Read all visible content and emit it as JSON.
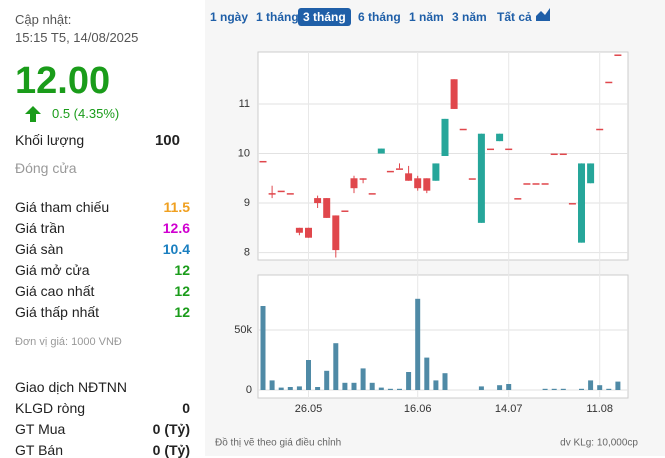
{
  "header": {
    "updated_label": "Cập nhật:",
    "updated_time": "15:15 T5, 14/08/2025",
    "price": "12.00",
    "change": "0.5 (4.35%)"
  },
  "volume_row": {
    "label": "Khối lượng",
    "value": "100"
  },
  "close_row": {
    "label": "Đóng cửa"
  },
  "price_rows": [
    {
      "label": "Giá tham chiếu",
      "value": "11.5"
    },
    {
      "label": "Giá trần",
      "value": "12.6"
    },
    {
      "label": "Giá sàn",
      "value": "10.4"
    },
    {
      "label": "Giá mở cửa",
      "value": "12"
    },
    {
      "label": "Giá cao nhất",
      "value": "12"
    },
    {
      "label": "Giá thấp nhất",
      "value": "12"
    }
  ],
  "unit_note": "Đơn vị giá: 1000 VNĐ",
  "foreign": {
    "title": "Giao dịch NĐTNN",
    "rows": [
      {
        "label": "KLGD ròng",
        "value": "0"
      },
      {
        "label": "GT Mua",
        "value": "0 (Tỷ)"
      },
      {
        "label": "GT Bán",
        "value": "0 (Tỷ)"
      }
    ]
  },
  "tabs": [
    "1 ngày",
    "1 tháng",
    "3 tháng",
    "6 tháng",
    "1 năm",
    "3 năm",
    "Tất cả"
  ],
  "footer": {
    "note": "Đồ thị vẽ theo giá điều chỉnh",
    "volume_unit": "dv KLg: 10,000cp"
  },
  "chart_data": {
    "type": "candlestick",
    "categories": [
      null,
      null,
      null,
      null,
      null,
      "26.05",
      null,
      null,
      null,
      null,
      null,
      null,
      null,
      null,
      null,
      null,
      null,
      "16.06",
      null,
      null,
      null,
      null,
      null,
      null,
      null,
      null,
      null,
      "14.07",
      null,
      null,
      null,
      null,
      null,
      null,
      null,
      null,
      null,
      "11.08",
      null,
      null
    ],
    "open": [
      9.85,
      9.2,
      9.25,
      9.2,
      8.5,
      8.5,
      9.1,
      9.1,
      8.75,
      8.85,
      9.5,
      9.5,
      9.2,
      10.0,
      9.65,
      9.7,
      9.6,
      9.5,
      9.5,
      9.45,
      9.95,
      11.5,
      10.5,
      9.5,
      8.6,
      10.1,
      10.25,
      10.1,
      9.1,
      9.4,
      9.4,
      9.4,
      10.0,
      10.0,
      9.0,
      8.2,
      9.4,
      10.5,
      11.45,
      12.0
    ],
    "high": [
      9.85,
      9.35,
      9.25,
      9.2,
      8.5,
      8.5,
      9.15,
      9.1,
      8.75,
      8.85,
      9.55,
      9.5,
      9.2,
      10.1,
      9.65,
      9.8,
      9.75,
      9.55,
      9.5,
      9.8,
      10.7,
      11.5,
      10.5,
      9.5,
      10.4,
      10.1,
      10.4,
      10.1,
      9.1,
      9.4,
      9.4,
      9.4,
      10.0,
      10.0,
      9.0,
      9.8,
      9.8,
      10.5,
      11.45,
      12.0
    ],
    "low": [
      9.85,
      9.1,
      9.25,
      9.2,
      8.35,
      8.3,
      8.9,
      8.7,
      7.9,
      8.85,
      9.2,
      9.4,
      9.2,
      10.0,
      9.65,
      9.7,
      9.45,
      9.25,
      9.2,
      9.45,
      9.95,
      10.9,
      10.5,
      9.5,
      8.6,
      10.1,
      10.25,
      10.1,
      9.1,
      9.4,
      9.4,
      9.4,
      10.0,
      10.0,
      9.0,
      8.2,
      9.4,
      10.5,
      11.45,
      12.0
    ],
    "close": [
      9.85,
      9.2,
      9.25,
      9.2,
      8.4,
      8.3,
      9.0,
      8.7,
      8.05,
      8.85,
      9.3,
      9.5,
      9.2,
      10.1,
      9.65,
      9.7,
      9.45,
      9.3,
      9.25,
      9.8,
      10.7,
      10.9,
      10.5,
      9.5,
      10.4,
      10.1,
      10.4,
      10.1,
      9.1,
      9.4,
      9.4,
      9.4,
      10.0,
      10.0,
      9.0,
      9.8,
      9.8,
      10.5,
      11.45,
      12.0
    ],
    "up_color": "#26a69a",
    "down_color": "#e0474c",
    "ylim": [
      7.85,
      12.05
    ],
    "yticks": [
      8,
      9,
      10,
      11
    ],
    "volume": [
      70000,
      8000,
      2000,
      2500,
      3000,
      25000,
      2500,
      16000,
      39000,
      6000,
      6000,
      18000,
      6000,
      2000,
      1000,
      1000,
      15000,
      76000,
      27000,
      8000,
      14000,
      0,
      0,
      0,
      3000,
      0,
      4000,
      5000,
      0,
      0,
      0,
      1000,
      1000,
      1000,
      0,
      1000,
      8000,
      4000,
      1000,
      7000
    ],
    "volume_color": "#4f8aa6",
    "volume_ylim": [
      0,
      100000
    ],
    "volume_ticks": [
      0,
      {
        "value": 50000,
        "label": "50k"
      }
    ]
  }
}
